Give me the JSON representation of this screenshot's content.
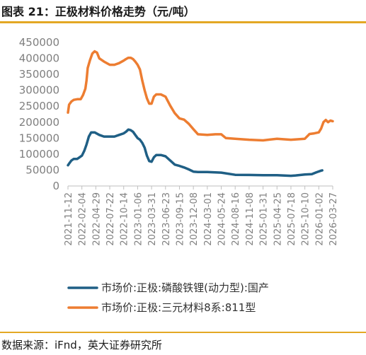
{
  "header": {
    "title": "图表 21：正极材料价格走势（元/吨）"
  },
  "footer": {
    "source": "数据来源：iFnd，英大证券研究所"
  },
  "chart_data": {
    "type": "line",
    "title": "图表 21：正极材料价格走势（元/吨）",
    "ylim": [
      0,
      450000
    ],
    "yticks": [
      0,
      50000,
      100000,
      150000,
      200000,
      250000,
      300000,
      350000,
      400000,
      450000
    ],
    "ytick_labels": [
      "0",
      "50000",
      "100000",
      "150000",
      "200000",
      "250000",
      "300000",
      "350000",
      "400000",
      "450000"
    ],
    "xticks": [
      "2021-11-12",
      "2022-02-04",
      "2022-04-29",
      "2022-07-22",
      "2022-10-14",
      "2023-01-06",
      "2023-03-31",
      "2023-06-23",
      "2023-09-15",
      "2023-12-08",
      "2024-03-01",
      "2024-05-24",
      "2024-08-16",
      "2024-11-08",
      "2025-01-31",
      "2025-04-25",
      "2025-07-18",
      "2025-10-10",
      "2026-01-02",
      "2026-03-27"
    ],
    "x_range": [
      "2021-11-12",
      "2026-03-27"
    ],
    "grid": false,
    "legend": "bottom",
    "series": [
      {
        "name": "市场价:正极:磷酸铁锂(动力型):国产",
        "color": "#1f5f85",
        "points": [
          [
            "2021-11-12",
            65000
          ],
          [
            "2021-11-19",
            70000
          ],
          [
            "2021-12-03",
            80000
          ],
          [
            "2021-12-17",
            85000
          ],
          [
            "2022-01-07",
            85000
          ],
          [
            "2022-01-21",
            90000
          ],
          [
            "2022-02-04",
            95000
          ],
          [
            "2022-02-18",
            110000
          ],
          [
            "2022-03-04",
            130000
          ],
          [
            "2022-03-18",
            155000
          ],
          [
            "2022-04-01",
            168000
          ],
          [
            "2022-04-22",
            168000
          ],
          [
            "2022-05-20",
            160000
          ],
          [
            "2022-06-17",
            155000
          ],
          [
            "2022-07-22",
            155000
          ],
          [
            "2022-08-19",
            155000
          ],
          [
            "2022-09-16",
            160000
          ],
          [
            "2022-10-14",
            165000
          ],
          [
            "2022-10-28",
            170000
          ],
          [
            "2022-11-11",
            177000
          ],
          [
            "2022-11-25",
            175000
          ],
          [
            "2022-12-09",
            170000
          ],
          [
            "2022-12-23",
            160000
          ],
          [
            "2023-01-06",
            150000
          ],
          [
            "2023-01-20",
            145000
          ],
          [
            "2023-02-03",
            135000
          ],
          [
            "2023-02-17",
            120000
          ],
          [
            "2023-03-03",
            95000
          ],
          [
            "2023-03-17",
            78000
          ],
          [
            "2023-03-31",
            76000
          ],
          [
            "2023-04-14",
            90000
          ],
          [
            "2023-04-28",
            97000
          ],
          [
            "2023-05-26",
            97000
          ],
          [
            "2023-06-23",
            93000
          ],
          [
            "2023-07-21",
            80000
          ],
          [
            "2023-08-18",
            67000
          ],
          [
            "2023-09-15",
            63000
          ],
          [
            "2023-10-13",
            58000
          ],
          [
            "2023-11-10",
            52000
          ],
          [
            "2023-12-08",
            45000
          ],
          [
            "2024-01-05",
            44000
          ],
          [
            "2024-03-01",
            44000
          ],
          [
            "2024-05-24",
            42000
          ],
          [
            "2024-08-16",
            35000
          ],
          [
            "2024-11-08",
            34500
          ],
          [
            "2025-01-31",
            34000
          ],
          [
            "2025-04-25",
            34000
          ],
          [
            "2025-07-18",
            32000
          ],
          [
            "2025-08-15",
            33000
          ],
          [
            "2025-10-10",
            36000
          ],
          [
            "2025-11-21",
            37000
          ],
          [
            "2025-12-19",
            43000
          ],
          [
            "2026-01-16",
            48000
          ],
          [
            "2026-01-23",
            49000
          ]
        ]
      },
      {
        "name": "市场价:正极:三元材料8系:811型",
        "color": "#ed7d31",
        "points": [
          [
            "2021-11-12",
            230000
          ],
          [
            "2021-11-19",
            255000
          ],
          [
            "2021-12-03",
            265000
          ],
          [
            "2021-12-17",
            270000
          ],
          [
            "2022-01-07",
            272000
          ],
          [
            "2022-01-28",
            272000
          ],
          [
            "2022-02-11",
            285000
          ],
          [
            "2022-02-25",
            305000
          ],
          [
            "2022-03-04",
            330000
          ],
          [
            "2022-03-11",
            370000
          ],
          [
            "2022-03-25",
            395000
          ],
          [
            "2022-04-08",
            415000
          ],
          [
            "2022-04-22",
            422000
          ],
          [
            "2022-05-06",
            418000
          ],
          [
            "2022-05-20",
            400000
          ],
          [
            "2022-06-17",
            390000
          ],
          [
            "2022-07-22",
            380000
          ],
          [
            "2022-08-19",
            380000
          ],
          [
            "2022-09-16",
            385000
          ],
          [
            "2022-10-14",
            393000
          ],
          [
            "2022-10-28",
            398000
          ],
          [
            "2022-11-11",
            402000
          ],
          [
            "2022-11-25",
            402000
          ],
          [
            "2022-12-09",
            398000
          ],
          [
            "2022-12-23",
            390000
          ],
          [
            "2023-01-06",
            380000
          ],
          [
            "2023-01-20",
            365000
          ],
          [
            "2023-02-03",
            330000
          ],
          [
            "2023-02-17",
            300000
          ],
          [
            "2023-03-03",
            275000
          ],
          [
            "2023-03-17",
            258000
          ],
          [
            "2023-03-31",
            258000
          ],
          [
            "2023-04-14",
            280000
          ],
          [
            "2023-04-28",
            287000
          ],
          [
            "2023-05-26",
            287000
          ],
          [
            "2023-06-23",
            280000
          ],
          [
            "2023-07-21",
            252000
          ],
          [
            "2023-08-18",
            228000
          ],
          [
            "2023-09-15",
            212000
          ],
          [
            "2023-10-13",
            208000
          ],
          [
            "2023-11-10",
            195000
          ],
          [
            "2023-12-08",
            178000
          ],
          [
            "2024-01-05",
            162000
          ],
          [
            "2024-03-01",
            160000
          ],
          [
            "2024-04-19",
            162000
          ],
          [
            "2024-05-24",
            162000
          ],
          [
            "2024-06-21",
            150000
          ],
          [
            "2024-08-16",
            148000
          ],
          [
            "2024-11-08",
            145000
          ],
          [
            "2025-01-31",
            143000
          ],
          [
            "2025-04-25",
            148000
          ],
          [
            "2025-07-18",
            145000
          ],
          [
            "2025-10-10",
            148000
          ],
          [
            "2025-11-07",
            163000
          ],
          [
            "2025-12-05",
            165000
          ],
          [
            "2026-01-02",
            168000
          ],
          [
            "2026-01-16",
            180000
          ],
          [
            "2026-01-30",
            200000
          ],
          [
            "2026-02-13",
            207000
          ],
          [
            "2026-02-27",
            200000
          ],
          [
            "2026-03-13",
            205000
          ],
          [
            "2026-03-27",
            203000
          ]
        ]
      }
    ]
  }
}
